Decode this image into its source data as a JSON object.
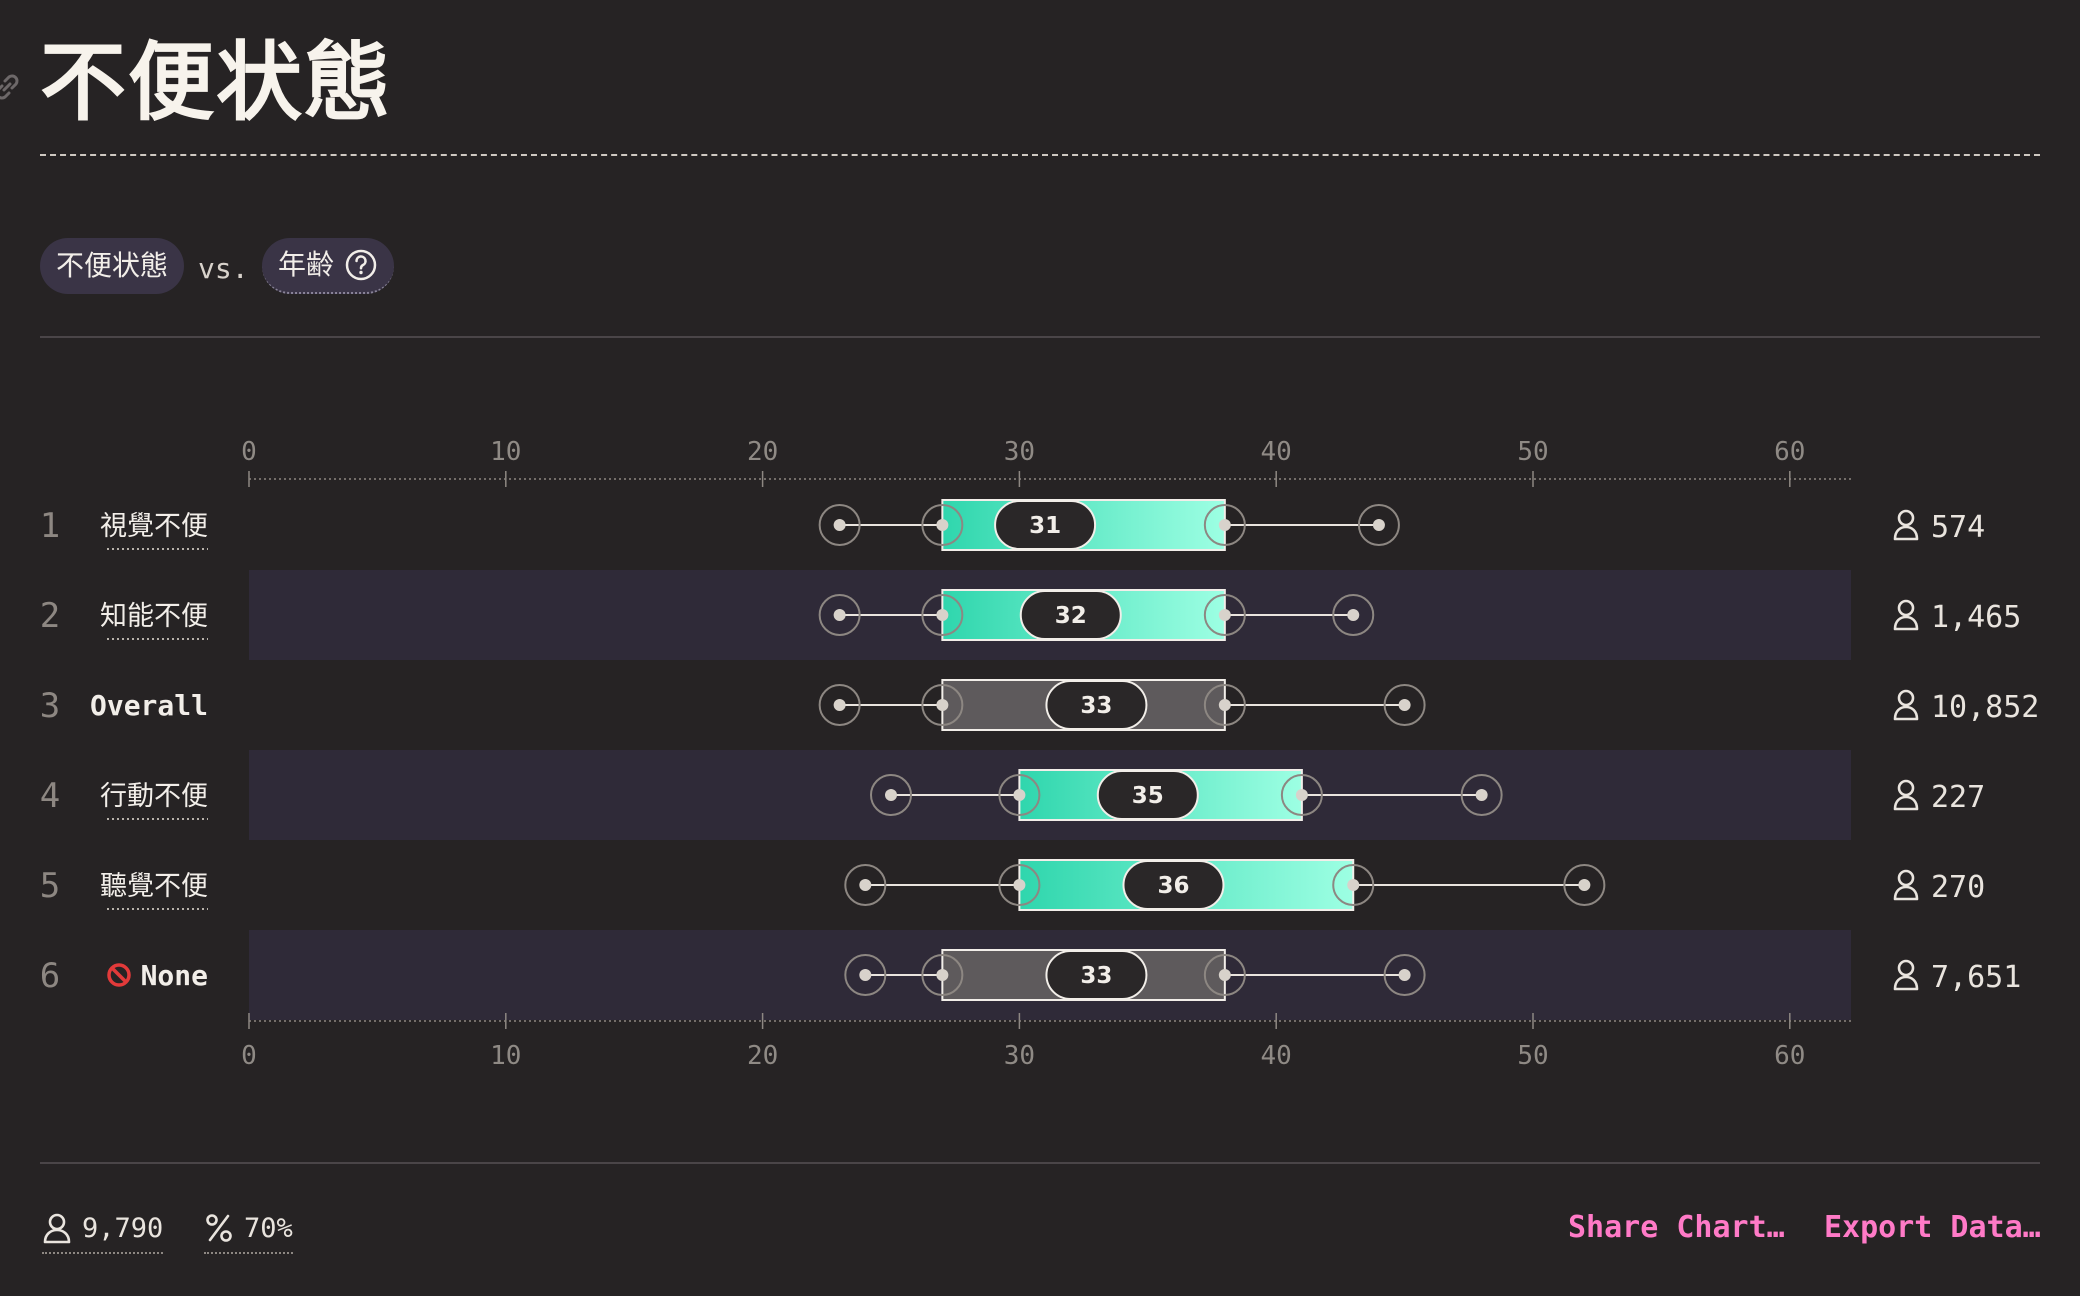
{
  "page": {
    "title": "不便状態"
  },
  "selector": {
    "primary": "不便状態",
    "vs": "vs.",
    "secondary": "年齢"
  },
  "footer": {
    "respondents": "9,790",
    "percent": "70%",
    "share_label": "Share Chart…",
    "export_label": "Export Data…"
  },
  "colors": {
    "background": "#262324",
    "box_gradient_start": "#2fd6ad",
    "box_gradient_end": "#9dffe3",
    "box_overall": "#5e5a5c",
    "row_stripe": "#2f2a38",
    "link_pink": "#ff7ac7"
  },
  "chart_data": {
    "type": "boxplot",
    "xlim": [
      0,
      62
    ],
    "ticks": [
      0,
      10,
      20,
      30,
      40,
      50,
      60
    ],
    "rows": [
      {
        "rank": "1",
        "label": "視覺不便",
        "style": "series",
        "min": 23,
        "q1": 27,
        "median": 31,
        "q3": 38,
        "max": 44,
        "count": "574"
      },
      {
        "rank": "2",
        "label": "知能不便",
        "style": "series",
        "min": 23,
        "q1": 27,
        "median": 32,
        "q3": 38,
        "max": 43,
        "count": "1,465"
      },
      {
        "rank": "3",
        "label": "Overall",
        "style": "overall",
        "min": 23,
        "q1": 27,
        "median": 33,
        "q3": 38,
        "max": 45,
        "count": "10,852"
      },
      {
        "rank": "4",
        "label": "行動不便",
        "style": "series",
        "min": 25,
        "q1": 30,
        "median": 35,
        "q3": 41,
        "max": 48,
        "count": "227"
      },
      {
        "rank": "5",
        "label": "聽覺不便",
        "style": "series",
        "min": 24,
        "q1": 30,
        "median": 36,
        "q3": 43,
        "max": 52,
        "count": "270"
      },
      {
        "rank": "6",
        "label": "None",
        "style": "none",
        "icon": "no-entry-icon",
        "min": 24,
        "q1": 27,
        "median": 33,
        "q3": 38,
        "max": 45,
        "count": "7,651"
      }
    ]
  }
}
